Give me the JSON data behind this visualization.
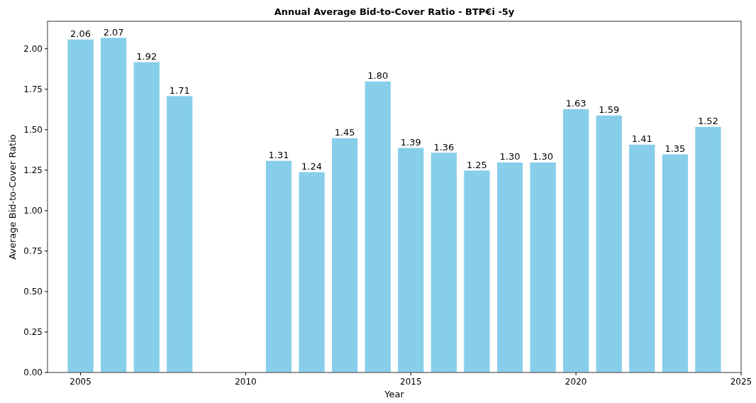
{
  "chart_data": {
    "type": "bar",
    "title": "Annual Average Bid-to-Cover Ratio - BTP€i -5y",
    "xlabel": "Year",
    "ylabel": "Average Bid-to-Cover Ratio",
    "x": [
      2005,
      2006,
      2007,
      2008,
      2011,
      2012,
      2013,
      2014,
      2015,
      2016,
      2017,
      2018,
      2019,
      2020,
      2021,
      2022,
      2023,
      2024
    ],
    "values": [
      2.06,
      2.07,
      1.92,
      1.71,
      1.31,
      1.24,
      1.45,
      1.8,
      1.39,
      1.36,
      1.25,
      1.3,
      1.3,
      1.63,
      1.59,
      1.41,
      1.35,
      1.52
    ],
    "value_labels": [
      "2.06",
      "2.07",
      "1.92",
      "1.71",
      "1.31",
      "1.24",
      "1.45",
      "1.80",
      "1.39",
      "1.36",
      "1.25",
      "1.30",
      "1.30",
      "1.63",
      "1.59",
      "1.41",
      "1.35",
      "1.52"
    ],
    "color": "#87ceeb",
    "xlim": [
      2004,
      2025
    ],
    "xticks": [
      2005,
      2010,
      2015,
      2020,
      2025
    ],
    "ylim": [
      0,
      2.17
    ],
    "yticks": [
      {
        "value": 0,
        "label": "0.00"
      },
      {
        "value": 0.25,
        "label": "0.25"
      },
      {
        "value": 0.5,
        "label": "0.50"
      },
      {
        "value": 0.75,
        "label": "0.75"
      },
      {
        "value": 1,
        "label": "1.00"
      },
      {
        "value": 1.25,
        "label": "1.25"
      },
      {
        "value": 1.5,
        "label": "1.50"
      },
      {
        "value": 1.75,
        "label": "1.75"
      },
      {
        "value": 2,
        "label": "2.00"
      }
    ],
    "grid": false
  }
}
